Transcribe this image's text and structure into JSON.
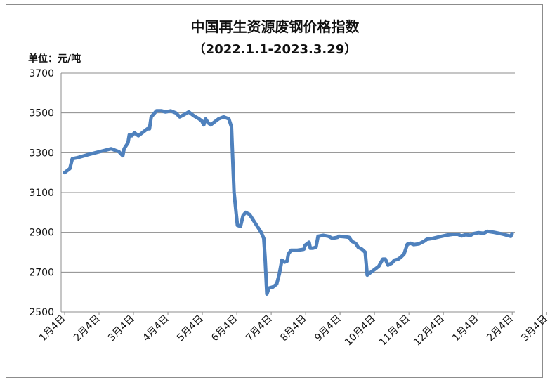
{
  "chart_data": {
    "type": "line",
    "title": "中国再生资源废钢价格指数",
    "subtitle": "（2022.1.1-2023.3.29）",
    "unit_label": "单位：元/吨",
    "ylim": [
      2500,
      3700
    ],
    "yticks": [
      2500,
      2700,
      2900,
      3100,
      3300,
      3500,
      3700
    ],
    "grid": true,
    "x_categories": [
      "1月4日",
      "2月4日",
      "3月4日",
      "4月4日",
      "5月4日",
      "6月4日",
      "7月4日",
      "8月4日",
      "9月4日",
      "10月4日",
      "11月4日",
      "12月4日",
      "1月4日",
      "2月4日",
      "3月4日"
    ],
    "series": [
      {
        "color": "#4f81bd",
        "values": [
          [
            0.0,
            3200
          ],
          [
            0.1,
            3210
          ],
          [
            0.2,
            3220
          ],
          [
            0.3,
            3270
          ],
          [
            0.5,
            3275
          ],
          [
            0.9,
            3290
          ],
          [
            1.2,
            3300
          ],
          [
            1.5,
            3310
          ],
          [
            1.8,
            3320
          ],
          [
            1.9,
            3315
          ],
          [
            2.1,
            3305
          ],
          [
            2.25,
            3285
          ],
          [
            2.3,
            3320
          ],
          [
            2.45,
            3350
          ],
          [
            2.5,
            3390
          ],
          [
            2.6,
            3385
          ],
          [
            2.7,
            3400
          ],
          [
            2.85,
            3385
          ],
          [
            3.0,
            3400
          ],
          [
            3.2,
            3420
          ],
          [
            3.28,
            3420
          ],
          [
            3.35,
            3480
          ],
          [
            3.55,
            3510
          ],
          [
            3.75,
            3510
          ],
          [
            3.9,
            3505
          ],
          [
            4.1,
            3510
          ],
          [
            4.3,
            3500
          ],
          [
            4.45,
            3480
          ],
          [
            4.6,
            3490
          ],
          [
            4.8,
            3505
          ],
          [
            5.0,
            3485
          ],
          [
            5.2,
            3470
          ],
          [
            5.3,
            3460
          ],
          [
            5.38,
            3440
          ],
          [
            5.45,
            3470
          ],
          [
            5.55,
            3450
          ],
          [
            5.65,
            3440
          ],
          [
            5.8,
            3455
          ],
          [
            5.95,
            3470
          ],
          [
            6.15,
            3480
          ],
          [
            6.35,
            3470
          ],
          [
            6.45,
            3430
          ],
          [
            6.55,
            3100
          ],
          [
            6.68,
            2935
          ],
          [
            6.8,
            2930
          ],
          [
            6.9,
            2985
          ],
          [
            7.0,
            3000
          ],
          [
            7.15,
            2990
          ],
          [
            7.3,
            2960
          ],
          [
            7.45,
            2930
          ],
          [
            7.6,
            2900
          ],
          [
            7.7,
            2870
          ],
          [
            7.75,
            2770
          ],
          [
            7.82,
            2590
          ],
          [
            7.9,
            2620
          ],
          [
            8.05,
            2625
          ],
          [
            8.2,
            2640
          ],
          [
            8.3,
            2690
          ],
          [
            8.4,
            2760
          ],
          [
            8.5,
            2750
          ],
          [
            8.6,
            2755
          ],
          [
            8.65,
            2790
          ],
          [
            8.75,
            2810
          ],
          [
            9.0,
            2810
          ],
          [
            9.25,
            2815
          ],
          [
            9.3,
            2835
          ],
          [
            9.45,
            2850
          ],
          [
            9.5,
            2820
          ],
          [
            9.6,
            2820
          ],
          [
            9.72,
            2825
          ],
          [
            9.8,
            2880
          ],
          [
            10.0,
            2885
          ],
          [
            10.2,
            2880
          ],
          [
            10.35,
            2870
          ],
          [
            10.55,
            2875
          ],
          [
            10.6,
            2880
          ],
          [
            10.8,
            2878
          ],
          [
            11.0,
            2875
          ],
          [
            11.1,
            2855
          ],
          [
            11.25,
            2845
          ],
          [
            11.35,
            2825
          ],
          [
            11.5,
            2815
          ],
          [
            11.62,
            2800
          ],
          [
            11.7,
            2685
          ],
          [
            11.85,
            2700
          ],
          [
            12.05,
            2720
          ],
          [
            12.15,
            2730
          ],
          [
            12.3,
            2765
          ],
          [
            12.4,
            2765
          ],
          [
            12.5,
            2735
          ],
          [
            12.65,
            2745
          ],
          [
            12.75,
            2760
          ],
          [
            12.9,
            2765
          ],
          [
            13.0,
            2775
          ],
          [
            13.12,
            2790
          ],
          [
            13.25,
            2840
          ],
          [
            13.38,
            2845
          ],
          [
            13.5,
            2838
          ],
          [
            13.7,
            2842
          ],
          [
            13.9,
            2855
          ],
          [
            14.0,
            2865
          ],
          [
            14.25,
            2870
          ],
          [
            14.5,
            2878
          ],
          [
            14.75,
            2885
          ],
          [
            15.0,
            2890
          ],
          [
            15.2,
            2890
          ],
          [
            15.35,
            2882
          ],
          [
            15.5,
            2888
          ],
          [
            15.7,
            2885
          ],
          [
            15.8,
            2893
          ],
          [
            16.0,
            2898
          ],
          [
            16.2,
            2895
          ],
          [
            16.35,
            2905
          ],
          [
            16.6,
            2900
          ],
          [
            16.9,
            2892
          ],
          [
            17.1,
            2885
          ],
          [
            17.25,
            2880
          ],
          [
            17.3,
            2893
          ]
        ]
      }
    ]
  }
}
